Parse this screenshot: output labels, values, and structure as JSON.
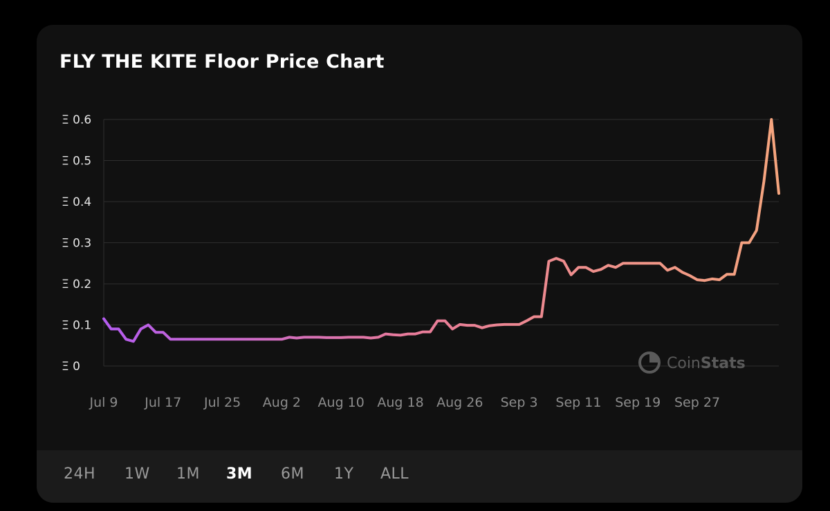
{
  "title": "FLY THE KITE Floor Price Chart",
  "watermark": {
    "logo_icon": "coinstats-logo-icon",
    "text_light": "Coin",
    "text_bold": "Stats"
  },
  "range_selector": {
    "options": [
      "24H",
      "1W",
      "1M",
      "3M",
      "6M",
      "1Y",
      "ALL"
    ],
    "selected": "3M"
  },
  "colors": {
    "background": "#000000",
    "card": "#111111",
    "footer": "#1b1b1b",
    "line_start": "#b45cf0",
    "line_mid": "#e87b9a",
    "line_end": "#f5a57e",
    "grid": "#2e2e2e"
  },
  "chart_data": {
    "type": "line",
    "title": "FLY THE KITE Floor Price Chart",
    "xlabel": "",
    "ylabel": "",
    "ylim": [
      0,
      0.6
    ],
    "y_ticks": [
      "Ξ 0",
      "Ξ 0.1",
      "Ξ 0.2",
      "Ξ 0.3",
      "Ξ 0.4",
      "Ξ 0.5",
      "Ξ 0.6"
    ],
    "x_ticks": [
      "Jul 9",
      "Jul 17",
      "Jul 25",
      "Aug 2",
      "Aug 10",
      "Aug 18",
      "Aug 26",
      "Sep 3",
      "Sep 11",
      "Sep 19",
      "Sep 27"
    ],
    "grid": true,
    "series": [
      {
        "values": [
          0.115,
          0.09,
          0.09,
          0.065,
          0.06,
          0.09,
          0.1,
          0.082,
          0.082,
          0.065,
          0.065,
          0.065,
          0.065,
          0.065,
          0.065,
          0.065,
          0.065,
          0.065,
          0.065,
          0.065,
          0.065,
          0.065,
          0.065,
          0.065,
          0.065,
          0.07,
          0.068,
          0.07,
          0.07,
          0.07,
          0.069,
          0.069,
          0.069,
          0.07,
          0.07,
          0.07,
          0.068,
          0.07,
          0.078,
          0.076,
          0.075,
          0.078,
          0.078,
          0.083,
          0.083,
          0.11,
          0.11,
          0.09,
          0.101,
          0.099,
          0.099,
          0.093,
          0.098,
          0.1,
          0.101,
          0.101,
          0.101,
          0.11,
          0.12,
          0.12,
          0.255,
          0.262,
          0.255,
          0.222,
          0.24,
          0.24,
          0.23,
          0.235,
          0.245,
          0.24,
          0.25,
          0.25,
          0.25,
          0.25,
          0.25,
          0.25,
          0.233,
          0.24,
          0.228,
          0.22,
          0.21,
          0.208,
          0.212,
          0.21,
          0.223,
          0.223,
          0.3,
          0.3,
          0.33,
          0.45,
          0.6,
          0.42
        ]
      }
    ]
  }
}
